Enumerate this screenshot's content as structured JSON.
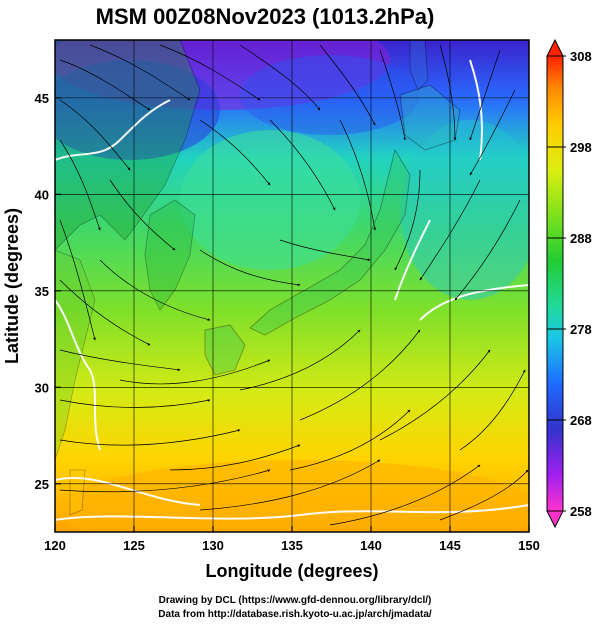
{
  "title": "MSM 00Z08Nov2023 (1013.2hPa)",
  "xlabel": "Longitude (degrees)",
  "ylabel": "Latitude  (degrees)",
  "x_ticks": [
    120,
    125,
    130,
    135,
    140,
    145,
    150
  ],
  "y_ticks": [
    25,
    30,
    35,
    40,
    45
  ],
  "colorbar": {
    "min": 258,
    "max": 308,
    "ticks": [
      258,
      268,
      278,
      288,
      298,
      308
    ],
    "colors": [
      "#ff33cc",
      "#a020f0",
      "#3333cc",
      "#1e6bff",
      "#19c7e6",
      "#21d99a",
      "#22cc33",
      "#7de21c",
      "#ddee11",
      "#ffcc00",
      "#ff8800",
      "#ff2200"
    ]
  },
  "footer_line1": "Drawing by DCL (https://www.gfd-dennou.org/library/dcl/)",
  "footer_line2": "Data from http://database.rish.kyoto-u.ac.jp/arch/jmadata/",
  "colors": {
    "land_outline": "#000000",
    "isotherm": "#ffffff",
    "streamline": "#000000"
  }
}
